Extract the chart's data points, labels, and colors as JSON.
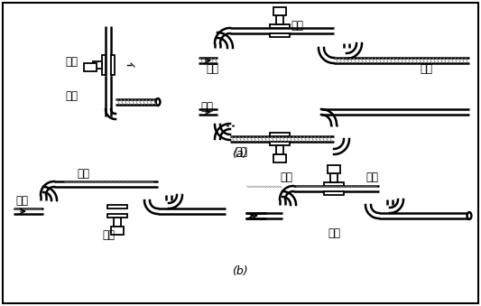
{
  "bg_color": "#ffffff",
  "line_color": "#000000",
  "pipe_lw": 2.2,
  "label_a": "(a)",
  "label_b": "(b)",
  "zhengque": "正确",
  "cuowu": "错误",
  "yeti": "液体",
  "qipao": "气泡",
  "font_size": 8.5
}
